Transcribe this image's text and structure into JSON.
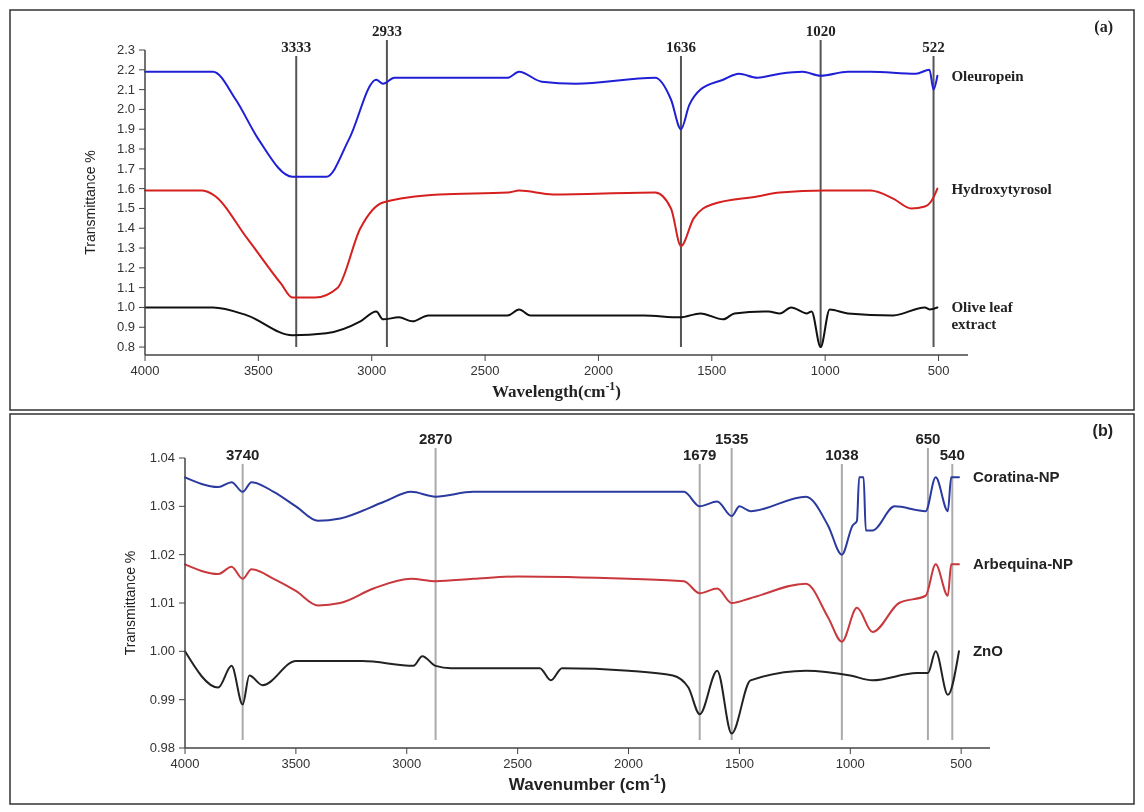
{
  "chart_data": [
    {
      "type": "line",
      "xlabel": "Wavelength(cm$^{-1}$)",
      "ylabel": "Transmittance %",
      "annotations": [
        "(a)"
      ],
      "xlim": [
        4000,
        370
      ],
      "ylim": [
        0.76,
        2.3
      ],
      "xticks": [
        4000,
        3500,
        3000,
        2500,
        2000,
        1500,
        1000,
        500
      ],
      "yticks": [
        0.8,
        0.9,
        {
          "value": 1,
          "label": "1.0"
        },
        1.1,
        1.2,
        1.3,
        1.4,
        1.5,
        1.6,
        1.7,
        1.8,
        1.9,
        {
          "value": 2,
          "label": "2.0"
        },
        2.1,
        2.2,
        2.3
      ],
      "ref_lines": [
        {
          "axis": "x",
          "value": 3333,
          "label": "3333",
          "color": "#555555"
        },
        {
          "axis": "x",
          "value": 2933,
          "label": "2933",
          "color": "#555555"
        },
        {
          "axis": "x",
          "value": 1636,
          "label": "1636",
          "color": "#555555"
        },
        {
          "axis": "x",
          "value": 1020,
          "label": "1020",
          "color": "#555555"
        },
        {
          "axis": "x",
          "value": 522,
          "label": "522",
          "color": "#555555"
        }
      ],
      "series": [
        {
          "name": "Oleuropein",
          "color": "#1f1fd6",
          "x": [
            4000,
            3700,
            3600,
            3500,
            3350,
            3200,
            3100,
            2980,
            2950,
            2900,
            2400,
            2350,
            2250,
            2100,
            1750,
            1680,
            1636,
            1600,
            1550,
            1450,
            1380,
            1300,
            1200,
            1100,
            1020,
            900,
            800,
            600,
            540,
            522,
            505
          ],
          "values": [
            2.19,
            2.19,
            2.05,
            1.85,
            1.66,
            1.66,
            1.85,
            2.15,
            2.13,
            2.16,
            2.16,
            2.19,
            2.14,
            2.13,
            2.16,
            2.05,
            1.9,
            2.02,
            2.1,
            2.15,
            2.18,
            2.16,
            2.18,
            2.19,
            2.17,
            2.19,
            2.19,
            2.18,
            2.2,
            2.1,
            2.17
          ]
        },
        {
          "name": "Hydroxytyrosol",
          "color": "#d62020",
          "x": [
            4000,
            3750,
            3700,
            3550,
            3400,
            3350,
            3250,
            3150,
            3050,
            2950,
            2700,
            2400,
            2350,
            2200,
            1750,
            1680,
            1636,
            1580,
            1500,
            1300,
            1200,
            1000,
            800,
            700,
            620,
            560,
            530,
            505
          ],
          "values": [
            1.59,
            1.59,
            1.57,
            1.35,
            1.12,
            1.05,
            1.05,
            1.1,
            1.4,
            1.53,
            1.57,
            1.58,
            1.59,
            1.57,
            1.58,
            1.5,
            1.31,
            1.45,
            1.52,
            1.56,
            1.58,
            1.59,
            1.59,
            1.55,
            1.5,
            1.51,
            1.54,
            1.6
          ]
        },
        {
          "name": "Olive leaf extract",
          "color": "#111111",
          "x": [
            4000,
            3700,
            3550,
            3350,
            3200,
            3050,
            2980,
            2950,
            2880,
            2820,
            2750,
            2400,
            2350,
            2300,
            1800,
            1640,
            1550,
            1450,
            1400,
            1250,
            1200,
            1150,
            1080,
            1060,
            1020,
            980,
            900,
            700,
            560,
            540,
            505
          ],
          "values": [
            1.0,
            1.0,
            0.96,
            0.86,
            0.87,
            0.93,
            0.98,
            0.94,
            0.95,
            0.93,
            0.96,
            0.96,
            0.99,
            0.96,
            0.96,
            0.95,
            0.97,
            0.94,
            0.97,
            0.98,
            0.97,
            1.0,
            0.97,
            0.98,
            0.8,
            0.99,
            0.97,
            0.96,
            1.0,
            0.99,
            1.0
          ]
        }
      ]
    },
    {
      "type": "line",
      "xlabel": "Wavenumber (cm$^{-1}$)",
      "ylabel": "Transmittance %",
      "annotations": [
        "(b)"
      ],
      "xlim": [
        4000,
        370
      ],
      "ylim": [
        0.98,
        1.04
      ],
      "xticks": [
        4000,
        3500,
        3000,
        2500,
        2000,
        1500,
        1000,
        500
      ],
      "yticks": [
        {
          "value": 0.98,
          "label": "0.98"
        },
        {
          "value": 0.99,
          "label": "0.99"
        },
        {
          "value": 1.0,
          "label": "1.00"
        },
        {
          "value": 1.01,
          "label": "1.01"
        },
        {
          "value": 1.02,
          "label": "1.02"
        },
        {
          "value": 1.03,
          "label": "1.03"
        },
        {
          "value": 1.04,
          "label": "1.04"
        }
      ],
      "ref_lines": [
        {
          "axis": "x",
          "value": 3740,
          "label": "3740",
          "color": "#aaaaaa"
        },
        {
          "axis": "x",
          "value": 2870,
          "label": "2870",
          "color": "#aaaaaa"
        },
        {
          "axis": "x",
          "value": 1679,
          "label": "1679",
          "color": "#aaaaaa"
        },
        {
          "axis": "x",
          "value": 1535,
          "label": "1535",
          "color": "#aaaaaa"
        },
        {
          "axis": "x",
          "value": 1038,
          "label": "1038",
          "color": "#aaaaaa"
        },
        {
          "axis": "x",
          "value": 650,
          "label": "650",
          "color": "#aaaaaa"
        },
        {
          "axis": "x",
          "value": 540,
          "label": "540",
          "color": "#aaaaaa"
        }
      ],
      "series": [
        {
          "name": "Coratina-NP",
          "color": "#2b3a9e",
          "x": [
            4000,
            3850,
            3790,
            3740,
            3700,
            3600,
            3500,
            3400,
            3300,
            3100,
            2980,
            2870,
            2700,
            2000,
            1750,
            1679,
            1600,
            1535,
            1500,
            1450,
            1200,
            1100,
            1038,
            990,
            970,
            960,
            940,
            930,
            900,
            800,
            660,
            615,
            560,
            545,
            510
          ],
          "values": [
            1.036,
            1.034,
            1.035,
            1.033,
            1.035,
            1.033,
            1.03,
            1.027,
            1.0275,
            1.031,
            1.033,
            1.032,
            1.033,
            1.033,
            1.033,
            1.03,
            1.031,
            1.028,
            1.03,
            1.029,
            1.032,
            1.026,
            1.02,
            1.026,
            1.027,
            1.036,
            1.036,
            1.025,
            1.025,
            1.03,
            1.029,
            1.036,
            1.029,
            1.036,
            1.036
          ]
        },
        {
          "name": "Arbequina-NP",
          "color": "#c8383c",
          "x": [
            4000,
            3850,
            3790,
            3740,
            3700,
            3600,
            3500,
            3400,
            3300,
            3150,
            2980,
            2870,
            2700,
            2500,
            2000,
            1750,
            1679,
            1600,
            1535,
            1450,
            1200,
            1100,
            1038,
            970,
            900,
            780,
            660,
            615,
            560,
            545,
            510
          ],
          "values": [
            1.018,
            1.016,
            1.0175,
            1.015,
            1.017,
            1.015,
            1.0125,
            1.0095,
            1.01,
            1.013,
            1.015,
            1.0145,
            1.015,
            1.0155,
            1.015,
            1.0145,
            1.012,
            1.013,
            1.01,
            1.011,
            1.014,
            1.007,
            1.002,
            1.009,
            1.004,
            1.01,
            1.0115,
            1.018,
            1.0115,
            1.018,
            1.018
          ]
        },
        {
          "name": "ZnO",
          "color": "#222222",
          "x": [
            4000,
            3850,
            3790,
            3740,
            3710,
            3650,
            3500,
            3200,
            2970,
            2930,
            2870,
            2800,
            2400,
            2350,
            2300,
            2000,
            1800,
            1730,
            1679,
            1600,
            1535,
            1450,
            1200,
            1000,
            900,
            700,
            650,
            615,
            560,
            510
          ],
          "values": [
            1.0,
            0.9925,
            0.997,
            0.989,
            0.995,
            0.993,
            0.998,
            0.998,
            0.997,
            0.999,
            0.997,
            0.9965,
            0.9965,
            0.994,
            0.9965,
            0.996,
            0.995,
            0.9925,
            0.987,
            0.996,
            0.983,
            0.994,
            0.996,
            0.995,
            0.994,
            0.9955,
            0.9955,
            1.0,
            0.991,
            1.0
          ]
        }
      ]
    }
  ]
}
